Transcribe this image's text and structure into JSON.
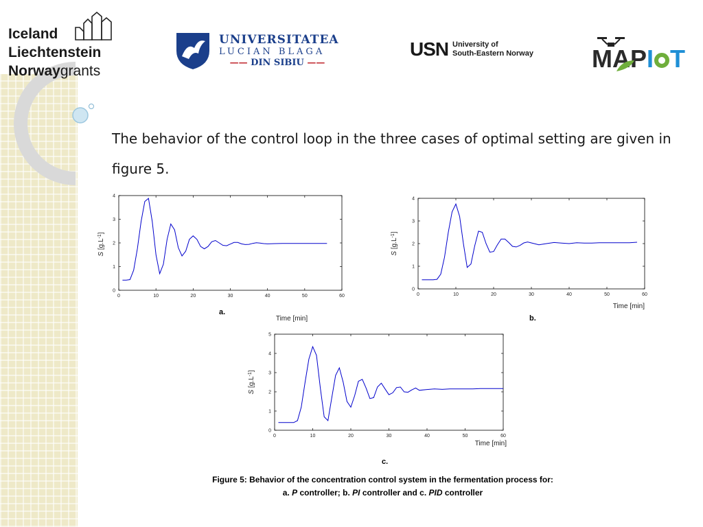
{
  "logos": {
    "eea_grants": {
      "line1": "Iceland",
      "line2": "Liechtenstein",
      "line3a": "Norway",
      "line3b": "grants"
    },
    "ulbs": {
      "line1": "UNIVERSITATEA",
      "line2": "LUCIAN BLAGA",
      "line3": "DIN SIBIU"
    },
    "usn": {
      "mark": "USN",
      "line1": "University of",
      "line2": "South-Eastern Norway"
    },
    "mapiot": {
      "text_a": "M",
      "text_b": "AP",
      "text_c": "I",
      "text_d": "T"
    }
  },
  "heading": "The behavior of the control loop in the three cases of optimal setting are given in figure 5.",
  "panel_labels": {
    "a": "a.",
    "b": "b.",
    "c": "c."
  },
  "caption": {
    "line1": "Figure 5: Behavior of the concentration control system in the fermentation process for:",
    "line2_parts": [
      "a. ",
      "P",
      " controller; b. ",
      "PI",
      " controller and c. ",
      "PID",
      " controller"
    ]
  },
  "colors": {
    "series": "#0000cc",
    "axis": "#000000"
  },
  "chart_data": [
    {
      "type": "line",
      "panel": "a",
      "xlabel": "Time [min]",
      "ylabel_main": "S",
      "ylabel_unit": " [g.L",
      "ylabel_sup": "-1",
      "ylabel_close": "]",
      "xlim": [
        0,
        60
      ],
      "ylim": [
        0,
        4
      ],
      "xticks": [
        0,
        10,
        20,
        30,
        40,
        50,
        60
      ],
      "yticks": [
        0,
        1,
        2,
        3,
        4
      ],
      "x": [
        1,
        2,
        3,
        4,
        5,
        6,
        7,
        8,
        9,
        10,
        11,
        12,
        13,
        14,
        15,
        16,
        17,
        18,
        19,
        20,
        21,
        22,
        23,
        24,
        25,
        26,
        27,
        28,
        29,
        30,
        31,
        32,
        33,
        34,
        35,
        36,
        37,
        38,
        39,
        40,
        42,
        44,
        46,
        48,
        50,
        52,
        54,
        56
      ],
      "y": [
        0.43,
        0.43,
        0.45,
        0.85,
        1.75,
        2.9,
        3.75,
        3.88,
        2.9,
        1.5,
        0.7,
        1.1,
        2.15,
        2.8,
        2.55,
        1.8,
        1.45,
        1.65,
        2.15,
        2.3,
        2.15,
        1.85,
        1.75,
        1.85,
        2.05,
        2.1,
        2.0,
        1.9,
        1.88,
        1.95,
        2.02,
        2.02,
        1.96,
        1.93,
        1.94,
        1.98,
        2.01,
        1.99,
        1.97,
        1.96,
        1.97,
        1.98,
        1.98,
        1.98,
        1.98,
        1.98,
        1.98,
        1.98
      ]
    },
    {
      "type": "line",
      "panel": "b",
      "xlabel": "Time [min]",
      "ylabel_main": "S",
      "ylabel_unit": " [g.L",
      "ylabel_sup": "-1",
      "ylabel_close": "]",
      "xlim": [
        0,
        60
      ],
      "ylim": [
        0,
        4
      ],
      "xticks": [
        0,
        10,
        20,
        30,
        40,
        50,
        60
      ],
      "yticks": [
        0,
        1,
        2,
        3,
        4
      ],
      "x": [
        1,
        2,
        3,
        4,
        5,
        6,
        7,
        8,
        9,
        10,
        11,
        12,
        13,
        14,
        15,
        16,
        17,
        18,
        19,
        20,
        21,
        22,
        23,
        24,
        25,
        26,
        27,
        28,
        29,
        30,
        32,
        34,
        36,
        38,
        40,
        42,
        44,
        46,
        48,
        50,
        52,
        54,
        56,
        58
      ],
      "y": [
        0.4,
        0.4,
        0.4,
        0.4,
        0.42,
        0.65,
        1.4,
        2.5,
        3.4,
        3.75,
        3.2,
        2.0,
        0.95,
        1.1,
        1.9,
        2.55,
        2.5,
        2.0,
        1.62,
        1.65,
        1.95,
        2.2,
        2.2,
        2.05,
        1.88,
        1.85,
        1.92,
        2.03,
        2.07,
        2.03,
        1.95,
        2.0,
        2.05,
        2.02,
        2.0,
        2.04,
        2.02,
        2.02,
        2.04,
        2.04,
        2.04,
        2.04,
        2.04,
        2.06
      ]
    },
    {
      "type": "line",
      "panel": "c",
      "xlabel": "Time [min]",
      "ylabel_main": "S",
      "ylabel_unit": " [g.L",
      "ylabel_sup": "-1",
      "ylabel_close": "]",
      "xlim": [
        0,
        60
      ],
      "ylim": [
        0,
        5
      ],
      "xticks": [
        0,
        10,
        20,
        30,
        40,
        50,
        60
      ],
      "yticks": [
        0,
        1,
        2,
        3,
        4,
        5
      ],
      "x": [
        1,
        2,
        3,
        4,
        5,
        6,
        7,
        8,
        9,
        10,
        11,
        12,
        13,
        14,
        15,
        16,
        17,
        18,
        19,
        20,
        21,
        22,
        23,
        24,
        25,
        26,
        27,
        28,
        29,
        30,
        31,
        32,
        33,
        34,
        35,
        36,
        37,
        38,
        40,
        42,
        44,
        46,
        48,
        50,
        52,
        54,
        56,
        58,
        60
      ],
      "y": [
        0.4,
        0.4,
        0.4,
        0.4,
        0.4,
        0.5,
        1.2,
        2.5,
        3.7,
        4.35,
        3.9,
        2.2,
        0.7,
        0.5,
        1.7,
        2.85,
        3.25,
        2.5,
        1.5,
        1.2,
        1.8,
        2.55,
        2.65,
        2.2,
        1.65,
        1.7,
        2.25,
        2.45,
        2.15,
        1.85,
        1.95,
        2.22,
        2.25,
        2.0,
        1.98,
        2.1,
        2.2,
        2.08,
        2.12,
        2.15,
        2.13,
        2.15,
        2.15,
        2.15,
        2.15,
        2.17,
        2.17,
        2.17,
        2.17
      ]
    }
  ]
}
